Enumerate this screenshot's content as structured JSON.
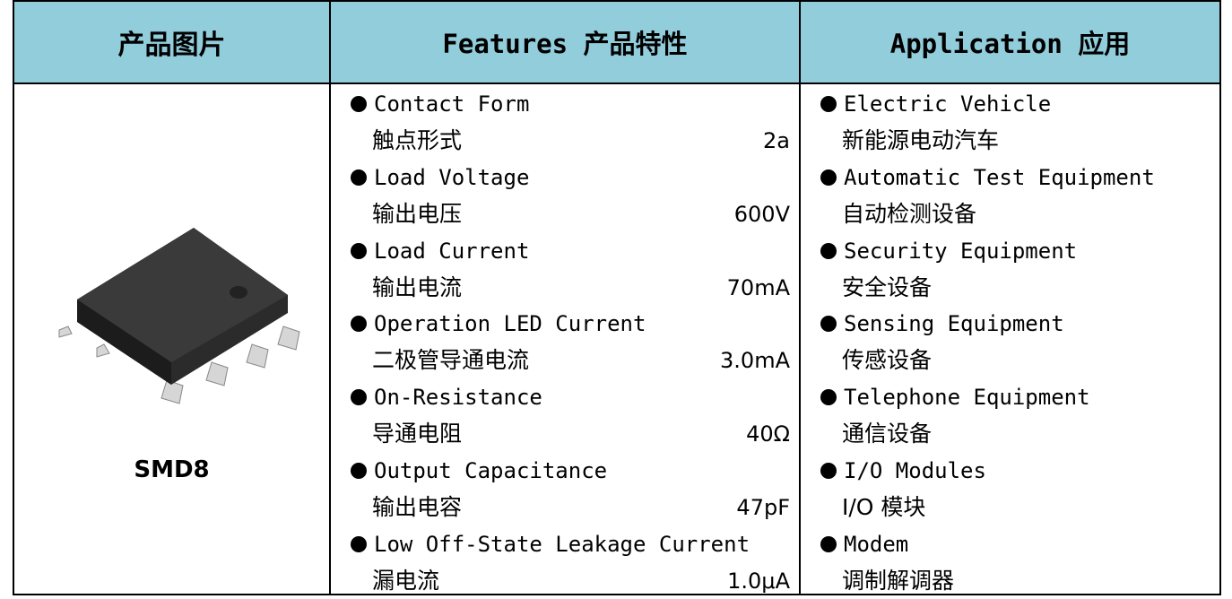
{
  "header": [
    "产品图片",
    "Features 产品特性",
    "Application 应用"
  ],
  "product": {
    "name": "SMD8"
  },
  "features": [
    {
      "name": "Contact Form",
      "label": "触点形式",
      "value": "2a"
    },
    {
      "name": "Load Voltage",
      "label": "输出电压",
      "value": "600V"
    },
    {
      "name": "Load Current",
      "label": "输出电流",
      "value": "70mA"
    },
    {
      "name": "Operation LED Current",
      "label": "二极管导通电流",
      "value": "3.0mA"
    },
    {
      "name": "On-Resistance",
      "label": "导通电阻",
      "value": "40Ω"
    },
    {
      "name": "Output Capacitance",
      "label": "输出电容",
      "value": "47pF"
    },
    {
      "name": "Low Off-State Leakage Current",
      "label": "漏电流",
      "value": "1.0μA"
    }
  ],
  "applications": [
    {
      "name": "Electric Vehicle",
      "label": "新能源电动汽车"
    },
    {
      "name": "Automatic Test Equipment",
      "label": "自动检测设备"
    },
    {
      "name": "Security Equipment",
      "label": "安全设备"
    },
    {
      "name": "Sensing Equipment",
      "label": "传感设备"
    },
    {
      "name": "Telephone Equipment",
      "label": "通信设备"
    },
    {
      "name": "I/O Modules",
      "label": "I/O 模块"
    },
    {
      "name": "Modem",
      "label": "调制解调器"
    }
  ]
}
